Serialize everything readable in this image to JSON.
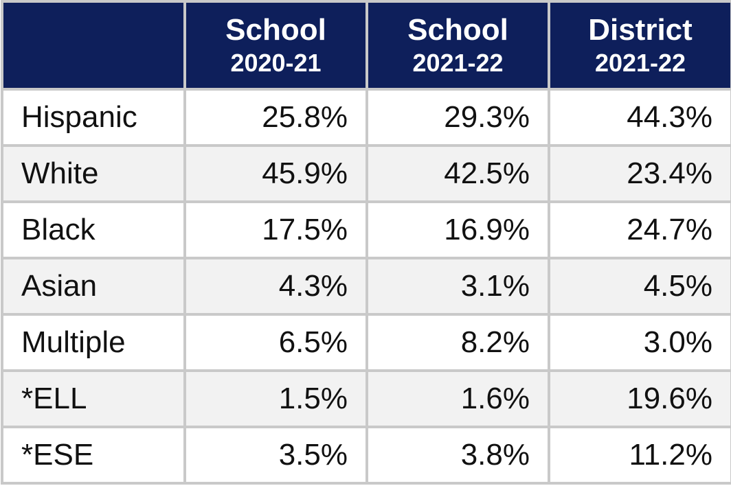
{
  "table": {
    "columns": [
      {
        "title": "School",
        "subtitle": "2020-21"
      },
      {
        "title": "School",
        "subtitle": "2021-22"
      },
      {
        "title": "District",
        "subtitle": "2021-22"
      }
    ],
    "rows": [
      [
        "Hispanic",
        "25.8%",
        "29.3%",
        "44.3%"
      ],
      [
        "White",
        "45.9%",
        "42.5%",
        "23.4%"
      ],
      [
        "Black",
        "17.5%",
        "16.9%",
        "24.7%"
      ],
      [
        "Asian",
        "4.3%",
        "3.1%",
        "4.5%"
      ],
      [
        "Multiple",
        "6.5%",
        "8.2%",
        "3.0%"
      ],
      [
        "*ELL",
        "1.5%",
        "1.6%",
        "19.6%"
      ],
      [
        "*ESE",
        "3.5%",
        "3.8%",
        "11.2%"
      ]
    ]
  }
}
